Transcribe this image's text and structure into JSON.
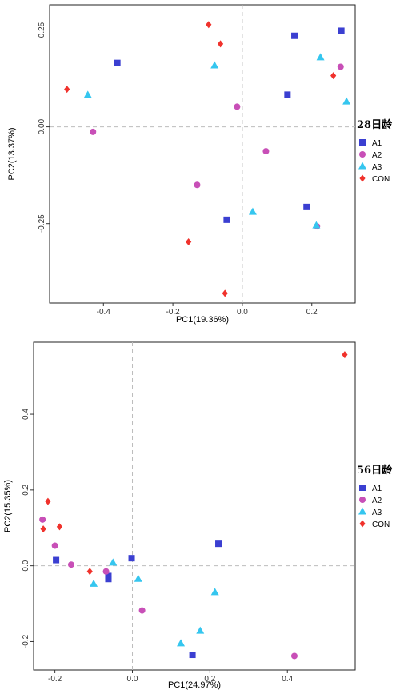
{
  "chart_data": [
    {
      "type": "scatter",
      "xlabel": "PC1(19.36%)",
      "ylabel": "PC2(13.37%)",
      "legend_title": "28日龄",
      "legend_position": "right",
      "xlim": [
        -0.555,
        0.325
      ],
      "ylim": [
        -0.455,
        0.315
      ],
      "xticks": [
        -0.4,
        -0.2,
        0.0,
        0.2
      ],
      "xtick_labels": [
        "-0.4",
        "-0.2",
        "0.0",
        "0.2"
      ],
      "yticks": [
        -0.25,
        0.0,
        0.25
      ],
      "ytick_labels": [
        "-0.25",
        "0.00",
        "0.25"
      ],
      "reference_lines": {
        "x": 0,
        "y": 0
      },
      "series": [
        {
          "name": "A1",
          "marker": "square",
          "color": "#3b3fd1",
          "points": [
            [
              -0.36,
              0.165
            ],
            [
              0.15,
              0.235
            ],
            [
              0.285,
              0.248
            ],
            [
              0.13,
              0.083
            ],
            [
              0.185,
              -0.207
            ],
            [
              -0.045,
              -0.24
            ]
          ]
        },
        {
          "name": "A2",
          "marker": "circle",
          "color": "#c84fb7",
          "points": [
            [
              -0.43,
              -0.013
            ],
            [
              0.283,
              0.155
            ],
            [
              -0.015,
              0.052
            ],
            [
              0.068,
              -0.063
            ],
            [
              -0.13,
              -0.15
            ],
            [
              0.215,
              -0.257
            ]
          ]
        },
        {
          "name": "A3",
          "marker": "triangle",
          "color": "#35c6ef",
          "points": [
            [
              -0.445,
              0.082
            ],
            [
              -0.08,
              0.158
            ],
            [
              0.225,
              0.179
            ],
            [
              0.3,
              0.065
            ],
            [
              0.03,
              -0.22
            ],
            [
              0.213,
              -0.255
            ]
          ]
        },
        {
          "name": "CON",
          "marker": "diamond",
          "color": "#f0322c",
          "points": [
            [
              -0.505,
              0.097
            ],
            [
              -0.097,
              0.264
            ],
            [
              -0.063,
              0.214
            ],
            [
              0.262,
              0.132
            ],
            [
              -0.155,
              -0.297
            ],
            [
              -0.05,
              -0.43
            ]
          ]
        }
      ]
    },
    {
      "type": "scatter",
      "xlabel": "PC1(24.97%)",
      "ylabel": "PC2(15.35%)",
      "legend_title": "56日龄",
      "legend_position": "right",
      "xlim": [
        -0.255,
        0.575
      ],
      "ylim": [
        -0.275,
        0.59
      ],
      "xticks": [
        -0.2,
        0.0,
        0.2,
        0.4
      ],
      "xtick_labels": [
        "-0.2",
        "0.0",
        "0.2",
        "0.4"
      ],
      "yticks": [
        -0.2,
        0.0,
        0.2,
        0.4
      ],
      "ytick_labels": [
        "-0.2",
        "0.0",
        "0.2",
        "0.4"
      ],
      "reference_lines": {
        "x": 0,
        "y": 0
      },
      "series": [
        {
          "name": "A1",
          "marker": "square",
          "color": "#3b3fd1",
          "points": [
            [
              -0.197,
              0.015
            ],
            [
              -0.062,
              -0.027
            ],
            [
              -0.062,
              -0.035
            ],
            [
              -0.002,
              0.02
            ],
            [
              0.222,
              0.058
            ],
            [
              0.155,
              -0.235
            ]
          ]
        },
        {
          "name": "A2",
          "marker": "circle",
          "color": "#c84fb7",
          "points": [
            [
              -0.232,
              0.122
            ],
            [
              -0.2,
              0.053
            ],
            [
              -0.158,
              0.003
            ],
            [
              -0.068,
              -0.015
            ],
            [
              0.025,
              -0.118
            ],
            [
              0.418,
              -0.238
            ]
          ]
        },
        {
          "name": "A3",
          "marker": "triangle",
          "color": "#35c6ef",
          "points": [
            [
              -0.05,
              0.008
            ],
            [
              -0.1,
              -0.048
            ],
            [
              0.015,
              -0.035
            ],
            [
              0.213,
              -0.07
            ],
            [
              0.175,
              -0.172
            ],
            [
              0.125,
              -0.205
            ]
          ]
        },
        {
          "name": "CON",
          "marker": "diamond",
          "color": "#f0322c",
          "points": [
            [
              -0.218,
              0.17
            ],
            [
              -0.23,
              0.097
            ],
            [
              -0.188,
              0.103
            ],
            [
              -0.11,
              -0.015
            ],
            [
              0.548,
              0.557
            ]
          ]
        }
      ]
    }
  ]
}
